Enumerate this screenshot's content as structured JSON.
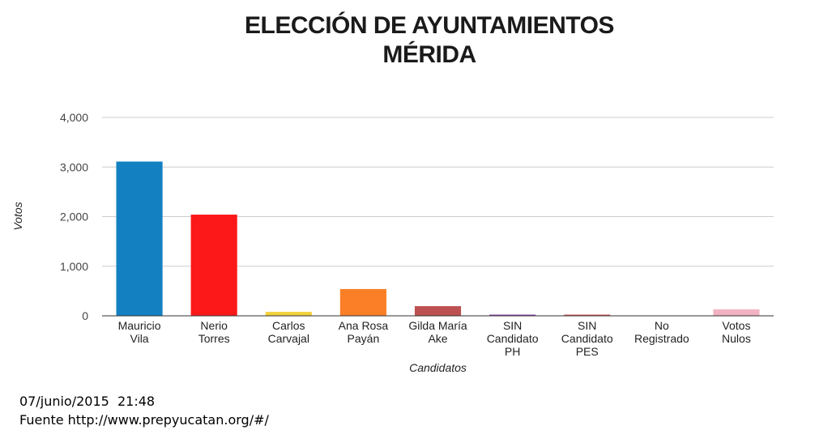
{
  "title_line1": "ELECCIÓN DE AYUNTAMIENTOS",
  "title_line2": "MÉRIDA",
  "chart_data": {
    "type": "bar",
    "categories": [
      [
        "Mauricio",
        "Vila"
      ],
      [
        "Nerio",
        "Torres"
      ],
      [
        "Carlos",
        "Carvajal"
      ],
      [
        "Ana Rosa",
        "Payán"
      ],
      [
        "Gilda María",
        "Ake"
      ],
      [
        "SIN",
        "Candidato",
        "PH"
      ],
      [
        "SIN",
        "Candidato",
        "PES"
      ],
      [
        "No",
        "Registrado"
      ],
      [
        "Votos",
        "Nulos"
      ]
    ],
    "values": [
      3110,
      2040,
      80,
      540,
      195,
      15,
      15,
      0,
      130
    ],
    "colors": [
      "#1380c2",
      "#fc1818",
      "#f2d13b",
      "#fa7f26",
      "#bd5151",
      "#8e44ad",
      "#d35454",
      "#555555",
      "#f1b3c1"
    ],
    "ylim": [
      0,
      4000
    ],
    "yticks": [
      0,
      1000,
      2000,
      3000,
      4000
    ],
    "ytick_labels": [
      "0",
      "1,000",
      "2,000",
      "3,000",
      "4,000"
    ],
    "xlabel": "Candidatos",
    "ylabel": "Votos",
    "grid": true
  },
  "footer": {
    "datetime": "07/junio/2015  21:48",
    "source": "Fuente http://www.prepyucatan.org/#/"
  }
}
